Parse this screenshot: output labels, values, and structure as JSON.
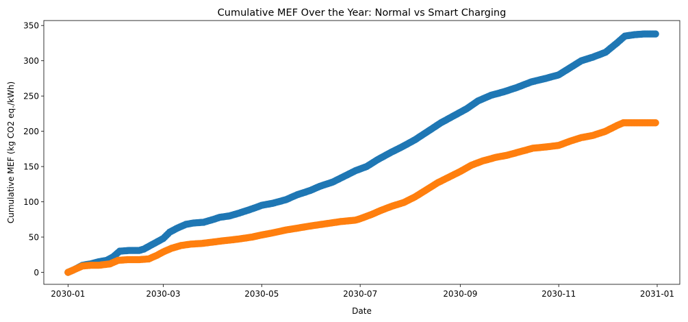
{
  "chart_data": {
    "type": "scatter",
    "title": "Cumulative MEF Over the Year: Normal vs Smart Charging",
    "xlabel": "Date",
    "ylabel": "Cumulative MEF (kg CO2 eq./kWh)",
    "x_tick_labels": [
      "2030-01",
      "2030-03",
      "2030-05",
      "2030-07",
      "2030-09",
      "2030-11",
      "2031-01"
    ],
    "x_tick_dates": [
      "2030-01-01",
      "2030-03-01",
      "2030-05-01",
      "2030-07-01",
      "2030-09-01",
      "2030-11-01",
      "2031-01-01"
    ],
    "y_ticks": [
      0,
      50,
      100,
      150,
      200,
      250,
      300,
      350
    ],
    "xlim": [
      "2029-12-17",
      "2031-01-15"
    ],
    "ylim": [
      -17,
      357
    ],
    "grid": false,
    "series": [
      {
        "color": "#1f77b4",
        "points": [
          [
            "2030-01-01",
            0
          ],
          [
            "2030-01-05",
            4
          ],
          [
            "2030-01-10",
            10
          ],
          [
            "2030-01-15",
            12
          ],
          [
            "2030-01-20",
            15
          ],
          [
            "2030-01-25",
            17
          ],
          [
            "2030-01-29",
            22
          ],
          [
            "2030-02-02",
            30
          ],
          [
            "2030-02-08",
            31
          ],
          [
            "2030-02-14",
            31
          ],
          [
            "2030-02-17",
            33
          ],
          [
            "2030-02-21",
            38
          ],
          [
            "2030-02-25",
            43
          ],
          [
            "2030-03-01",
            48
          ],
          [
            "2030-03-05",
            57
          ],
          [
            "2030-03-10",
            63
          ],
          [
            "2030-03-15",
            68
          ],
          [
            "2030-03-20",
            70
          ],
          [
            "2030-03-26",
            71
          ],
          [
            "2030-04-01",
            75
          ],
          [
            "2030-04-05",
            78
          ],
          [
            "2030-04-11",
            80
          ],
          [
            "2030-04-17",
            84
          ],
          [
            "2030-04-25",
            90
          ],
          [
            "2030-05-01",
            95
          ],
          [
            "2030-05-08",
            98
          ],
          [
            "2030-05-16",
            103
          ],
          [
            "2030-05-23",
            110
          ],
          [
            "2030-05-31",
            116
          ],
          [
            "2030-06-06",
            122
          ],
          [
            "2030-06-14",
            128
          ],
          [
            "2030-06-21",
            136
          ],
          [
            "2030-06-28",
            144
          ],
          [
            "2030-07-05",
            150
          ],
          [
            "2030-07-12",
            160
          ],
          [
            "2030-07-20",
            170
          ],
          [
            "2030-07-27",
            178
          ],
          [
            "2030-08-04",
            188
          ],
          [
            "2030-08-12",
            200
          ],
          [
            "2030-08-20",
            212
          ],
          [
            "2030-08-28",
            222
          ],
          [
            "2030-09-05",
            232
          ],
          [
            "2030-09-12",
            243
          ],
          [
            "2030-09-20",
            251
          ],
          [
            "2030-09-28",
            256
          ],
          [
            "2030-10-06",
            262
          ],
          [
            "2030-10-15",
            270
          ],
          [
            "2030-10-24",
            275
          ],
          [
            "2030-11-01",
            280
          ],
          [
            "2030-11-08",
            290
          ],
          [
            "2030-11-15",
            300
          ],
          [
            "2030-11-22",
            305
          ],
          [
            "2030-11-30",
            312
          ],
          [
            "2030-12-07",
            325
          ],
          [
            "2030-12-12",
            335
          ],
          [
            "2030-12-18",
            337
          ],
          [
            "2030-12-24",
            338
          ],
          [
            "2030-12-31",
            338
          ]
        ]
      },
      {
        "color": "#ff7f0e",
        "points": [
          [
            "2030-01-01",
            0
          ],
          [
            "2030-01-05",
            4
          ],
          [
            "2030-01-10",
            9
          ],
          [
            "2030-01-15",
            10
          ],
          [
            "2030-01-20",
            10
          ],
          [
            "2030-01-27",
            12
          ],
          [
            "2030-02-01",
            17
          ],
          [
            "2030-02-07",
            18
          ],
          [
            "2030-02-14",
            18
          ],
          [
            "2030-02-20",
            19
          ],
          [
            "2030-02-25",
            24
          ],
          [
            "2030-03-01",
            29
          ],
          [
            "2030-03-06",
            34
          ],
          [
            "2030-03-12",
            38
          ],
          [
            "2030-03-18",
            40
          ],
          [
            "2030-03-25",
            41
          ],
          [
            "2030-04-01",
            43
          ],
          [
            "2030-04-08",
            45
          ],
          [
            "2030-04-16",
            47
          ],
          [
            "2030-04-25",
            50
          ],
          [
            "2030-05-01",
            53
          ],
          [
            "2030-05-08",
            56
          ],
          [
            "2030-05-16",
            60
          ],
          [
            "2030-05-24",
            63
          ],
          [
            "2030-06-01",
            66
          ],
          [
            "2030-06-10",
            69
          ],
          [
            "2030-06-19",
            72
          ],
          [
            "2030-06-28",
            74
          ],
          [
            "2030-07-01",
            76
          ],
          [
            "2030-07-08",
            82
          ],
          [
            "2030-07-14",
            88
          ],
          [
            "2030-07-21",
            94
          ],
          [
            "2030-07-28",
            99
          ],
          [
            "2030-08-04",
            107
          ],
          [
            "2030-08-11",
            117
          ],
          [
            "2030-08-18",
            127
          ],
          [
            "2030-08-25",
            135
          ],
          [
            "2030-09-01",
            143
          ],
          [
            "2030-09-08",
            152
          ],
          [
            "2030-09-15",
            158
          ],
          [
            "2030-09-23",
            163
          ],
          [
            "2030-09-30",
            166
          ],
          [
            "2030-10-08",
            171
          ],
          [
            "2030-10-16",
            176
          ],
          [
            "2030-10-25",
            178
          ],
          [
            "2030-11-01",
            180
          ],
          [
            "2030-11-08",
            186
          ],
          [
            "2030-11-15",
            191
          ],
          [
            "2030-11-22",
            194
          ],
          [
            "2030-11-30",
            200
          ],
          [
            "2030-12-07",
            208
          ],
          [
            "2030-12-11",
            212
          ],
          [
            "2030-12-20",
            212
          ],
          [
            "2030-12-31",
            212
          ]
        ]
      }
    ]
  }
}
